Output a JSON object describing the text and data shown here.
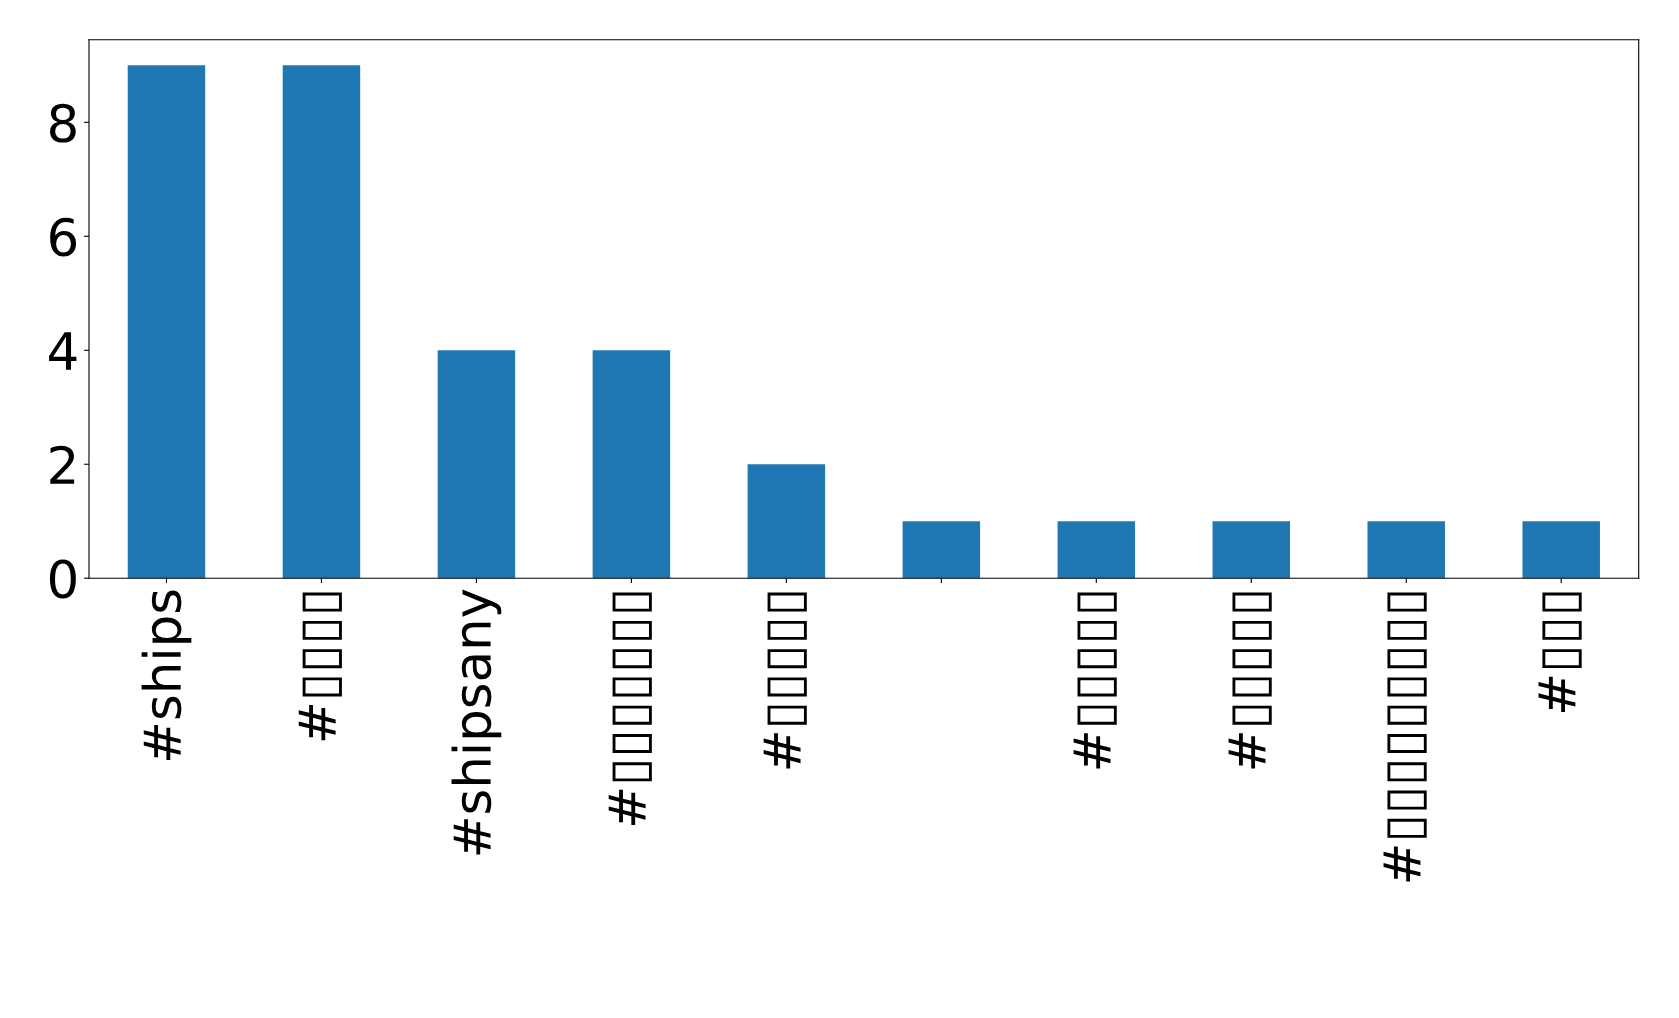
{
  "chart_data": {
    "type": "bar",
    "categories": [
      "#ships",
      "#▯▯▯▯",
      "#shipsany",
      "#▯▯▯▯▯▯▯",
      "#▯▯▯▯▯",
      null,
      "#▯▯▯▯▯",
      "#▯▯▯▯▯",
      "#▯▯▯▯▯▯▯▯▯",
      "#▯▯▯"
    ],
    "values": [
      9,
      9,
      4,
      4,
      2,
      1,
      1,
      1,
      1,
      1
    ],
    "color": "#1f77b4",
    "ylim": [
      0,
      9.45
    ],
    "yticks": [
      0,
      2,
      4,
      6,
      8
    ],
    "grid": false,
    "legend": false
  }
}
